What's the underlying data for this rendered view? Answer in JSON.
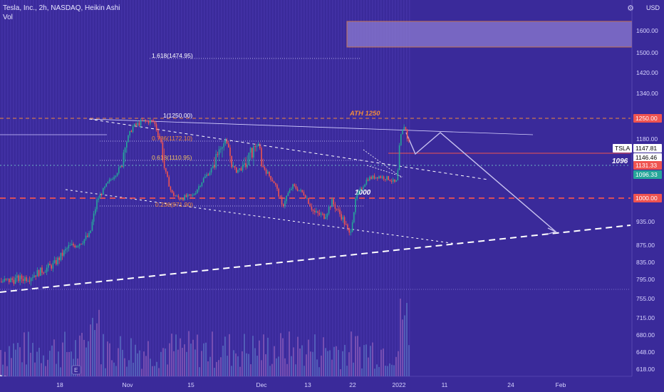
{
  "header": {
    "symbol_line": "Tesla, Inc., 2h, NASDAQ, Heikin Ashi",
    "indicator": "Vol",
    "currency": "USD",
    "currency_icon": "gear-icon"
  },
  "colors": {
    "background": "#3a2a9a",
    "up": "#26a69a",
    "down": "#ef5350",
    "accent_orange": "#f08a3c",
    "label_red": "#ef5350",
    "label_teal": "#26a69a",
    "line_white": "#ffffff"
  },
  "price_axis": {
    "ticks": [
      "1600.00",
      "1500.00",
      "1420.00",
      "1340.00",
      "1180.00",
      "935.00",
      "875.00",
      "835.00",
      "795.00",
      "755.00",
      "715.00",
      "680.00",
      "648.00",
      "618.00"
    ],
    "labels": [
      {
        "text": "1250.00",
        "kind": "orange"
      },
      {
        "text": "1147.81",
        "kind": "white"
      },
      {
        "text": "TSLA",
        "kind": "tag"
      },
      {
        "text": "1146.46",
        "kind": "white"
      },
      {
        "text": "1131.33",
        "kind": "red"
      },
      {
        "text": "1096.33",
        "kind": "teal"
      },
      {
        "text": "1000.00",
        "kind": "red"
      }
    ]
  },
  "time_axis": {
    "ticks": [
      "18",
      "Nov",
      "15",
      "Dec",
      "13",
      "22",
      "2022",
      "11",
      "24",
      "Feb"
    ]
  },
  "annotations": {
    "fib_1618": "1.618(1474.95)",
    "fib_1": "1(1250.00)",
    "fib_786": "0.786(1172.10)",
    "fib_618": "0.618(1110.95)",
    "fib_236": "0.236(971.90)",
    "ath": "ATH 1250",
    "level_1096": "1096",
    "level_1000": "1000",
    "earnings_marker": "E"
  },
  "chart_data": {
    "type": "candlestick",
    "title": "Tesla, Inc., 2h, NASDAQ, Heikin Ashi",
    "ylabel": "USD",
    "key_levels": [
      1600,
      1250,
      1172.1,
      1147.81,
      1146.46,
      1131.33,
      1110.95,
      1096.33,
      1000,
      971.9
    ],
    "x_ticks": [
      "18",
      "Nov",
      "15",
      "Dec",
      "13",
      "22",
      "2022",
      "11",
      "24",
      "Feb"
    ],
    "approx_close_series": [
      780,
      790,
      800,
      815,
      840,
      860,
      880,
      920,
      1000,
      1060,
      1120,
      1200,
      1230,
      1210,
      1150,
      1050,
      990,
      1000,
      1080,
      1170,
      1150,
      1100,
      1140,
      1050,
      1010,
      980,
      970,
      930,
      960,
      1040,
      1090,
      1110,
      1080,
      1100,
      1130,
      1240,
      1200
    ]
  }
}
